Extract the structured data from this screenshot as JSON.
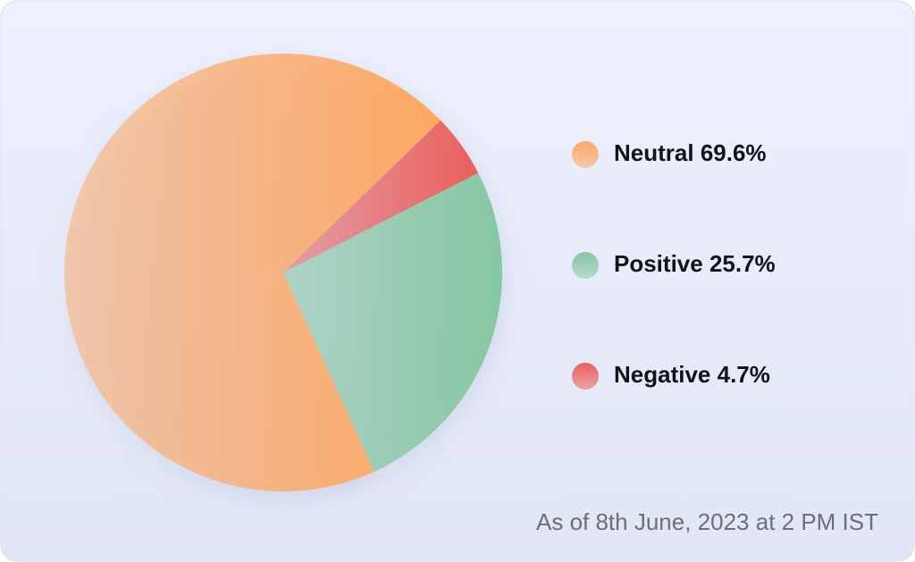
{
  "chart_data": {
    "type": "pie",
    "categories": [
      "Neutral",
      "Positive",
      "Negative"
    ],
    "values": [
      69.6,
      25.7,
      4.7
    ],
    "value_labels": [
      "69.6%",
      "25.7%",
      "4.7%"
    ],
    "colors": [
      "#fda862",
      "#86c7a2",
      "#ea5f5a"
    ],
    "footnote": "As of 8th June, 2023 at 2 PM IST"
  }
}
